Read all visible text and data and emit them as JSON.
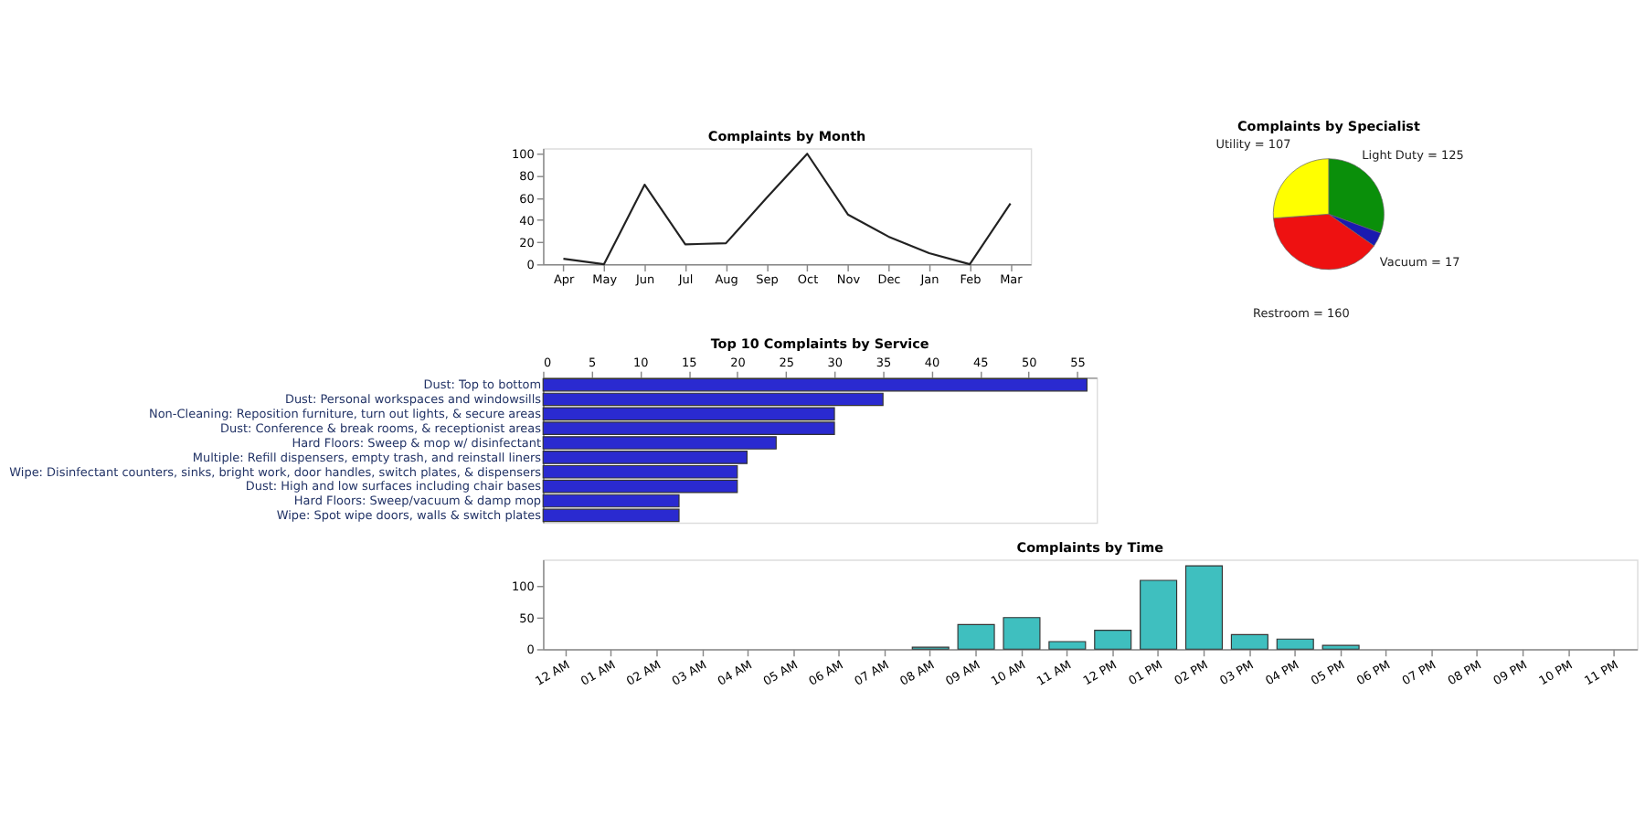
{
  "chart_data": [
    {
      "type": "line",
      "title": "Complaints by Month",
      "categories": [
        "Apr",
        "May",
        "Jun",
        "Jul",
        "Aug",
        "Sep",
        "Oct",
        "Nov",
        "Dec",
        "Jan",
        "Feb",
        "Mar"
      ],
      "series": [
        {
          "color": "#222222",
          "values": [
            5,
            0,
            72,
            18,
            19,
            60,
            100,
            45,
            25,
            10,
            0,
            55
          ]
        }
      ],
      "ylim": [
        0,
        105
      ],
      "yticks": [
        0,
        20,
        40,
        60,
        80,
        100
      ],
      "grid": false,
      "marker": "none",
      "line_style": "solid"
    },
    {
      "type": "pie",
      "title": "Complaints by Specialist",
      "categories": [
        "Light Duty = 125",
        "Vacuum = 17",
        "Restroom = 160",
        "Utility = 107"
      ],
      "values": [
        125,
        17,
        160,
        107
      ],
      "colors": [
        "#0a8f0a",
        "#1a1ab0",
        "#ee1111",
        "#ffff00"
      ]
    },
    {
      "type": "bar",
      "orientation": "horizontal",
      "title": "Top 10 Complaints by Service",
      "categories": [
        "Dust: Top to bottom",
        "Dust: Personal workspaces and windowsills",
        "Non-Cleaning: Reposition furniture, turn out lights, & secure areas",
        "Dust: Conference &  break rooms, & receptionist areas",
        "Hard Floors: Sweep & mop w/ disinfectant",
        "Multiple: Refill dispensers, empty trash, and reinstall liners",
        "Wipe: Disinfectant counters, sinks, bright work, door handles, switch plates, & dispensers",
        "Dust: High and low surfaces including chair bases",
        "Hard Floors: Sweep/vacuum & damp mop",
        "Wipe: Spot wipe doors, walls & switch plates"
      ],
      "series": [
        {
          "color": "#2a2ad0",
          "values": [
            56,
            35,
            30,
            30,
            24,
            21,
            20,
            20,
            14,
            14
          ]
        }
      ],
      "xlim": [
        0,
        57
      ],
      "xticks": [
        0,
        5,
        10,
        15,
        20,
        25,
        30,
        35,
        40,
        45,
        50,
        55
      ],
      "grid": false
    },
    {
      "type": "bar",
      "title": "Complaints by Time",
      "categories": [
        "12 AM",
        "01 AM",
        "02 AM",
        "03 AM",
        "04 AM",
        "05 AM",
        "06 AM",
        "07 AM",
        "08 AM",
        "09 AM",
        "10 AM",
        "11 AM",
        "12 PM",
        "01 PM",
        "02 PM",
        "03 PM",
        "04 PM",
        "05 PM",
        "06 PM",
        "07 PM",
        "08 PM",
        "09 PM",
        "10 PM",
        "11 PM"
      ],
      "series": [
        {
          "color": "#3fbfbf",
          "values": [
            0,
            0,
            0,
            0,
            0,
            0,
            0,
            0,
            3,
            39,
            50,
            12,
            30,
            109,
            132,
            23,
            16,
            6,
            0,
            0,
            0,
            0,
            0,
            0
          ]
        }
      ],
      "ylim": [
        0,
        142
      ],
      "yticks": [
        0,
        50,
        100
      ],
      "grid": false
    }
  ]
}
